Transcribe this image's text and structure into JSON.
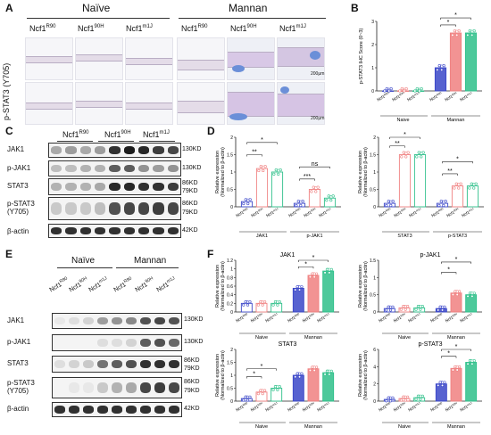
{
  "panels": {
    "A": "A",
    "B": "B",
    "C": "C",
    "D": "D",
    "E": "E",
    "F": "F"
  },
  "groups": {
    "naive": "Naïve",
    "mannan": "Mannan",
    "naive_small": "Naive"
  },
  "strains": {
    "r90_base": "Ncf1",
    "r90_sup": "R90",
    "g90h_base": "Ncf1",
    "g90h_sup": "90H",
    "m1j_base": "Ncf1",
    "m1j_sup": "m1J"
  },
  "panelA": {
    "row_label": "p-STAT3",
    "row_label2": "(Y705)",
    "scale": "200μm"
  },
  "proteins": {
    "jak1": "JAK1",
    "pjak1": "p-JAK1",
    "stat3": "STAT3",
    "pstat3": "p-STAT3",
    "pstat3_sub": "(Y705)",
    "bactin": "β-actin"
  },
  "kd": {
    "k130a": "130KD",
    "k130b": "130KD",
    "k86": "86KD",
    "k79": "79KD",
    "k86b": "86KD",
    "k79b": "79KD",
    "k42": "42KD"
  },
  "axis": {
    "ihc": "p-STAT3 IHC Score (0~3)",
    "rel1": "Relative expression",
    "rel2": "(Normalized to β-actin)"
  },
  "sig": {
    "star": "*",
    "dstar": "**",
    "tstar": "***",
    "ns": "ns"
  },
  "chart_data": [
    {
      "type": "bar",
      "panel": "B",
      "ylabel": "p-STAT3 IHC Score (0~3)",
      "ylim": [
        0,
        3
      ],
      "yticks": [
        0,
        1,
        2,
        3
      ],
      "categories": [
        "Ncf1R90",
        "Ncf190H",
        "Ncf1m1J",
        "Ncf1R90",
        "Ncf190H",
        "Ncf1m1J"
      ],
      "groups": [
        "Naive",
        "Mannan"
      ],
      "values": [
        0.0,
        0.0,
        0.0,
        1.0,
        2.5,
        2.5
      ],
      "colors": [
        "#3a46c8",
        "#f08080",
        "#2ec08a",
        "#3a46c8",
        "#f08080",
        "#2ec08a"
      ]
    },
    {
      "type": "bar",
      "panel": "D-left",
      "ylabel": "Relative expression (Normalized to β-actin)",
      "ylim": [
        0,
        2
      ],
      "yticks": [
        0.0,
        0.5,
        1.0,
        1.5,
        2.0
      ],
      "groups": [
        "JAK1",
        "p-JAK1"
      ],
      "categories": [
        "Ncf1R90",
        "Ncf190H",
        "Ncf1m1J",
        "Ncf1R90",
        "Ncf190H",
        "Ncf1m1J"
      ],
      "values": [
        0.15,
        1.1,
        1.0,
        0.1,
        0.5,
        0.25
      ]
    },
    {
      "type": "bar",
      "panel": "D-right",
      "ylabel": "Relative expression (Normalized to β-actin)",
      "ylim": [
        0,
        2
      ],
      "yticks": [
        0.0,
        0.5,
        1.0,
        1.5,
        2.0
      ],
      "groups": [
        "STAT3",
        "p-STAT3"
      ],
      "categories": [
        "Ncf1R90",
        "Ncf190H",
        "Ncf1m1J",
        "Ncf1R90",
        "Ncf190H",
        "Ncf1m1J"
      ],
      "values": [
        0.1,
        1.5,
        1.5,
        0.1,
        0.6,
        0.6
      ]
    },
    {
      "type": "bar",
      "panel": "F-JAK1",
      "title": "JAK1",
      "ylabel": "Relative expression (Normalized to β-actin)",
      "ylim": [
        0,
        1.2
      ],
      "yticks": [
        0.0,
        0.2,
        0.4,
        0.6,
        0.8,
        1.0,
        1.2
      ],
      "groups": [
        "Naive",
        "Mannan"
      ],
      "values": [
        0.2,
        0.2,
        0.2,
        0.55,
        0.85,
        0.95
      ]
    },
    {
      "type": "bar",
      "panel": "F-pJAK1",
      "title": "p-JAK1",
      "ylabel": "Relative expression (Normalized to β-actin)",
      "ylim": [
        0,
        1.5
      ],
      "yticks": [
        0.0,
        0.5,
        1.0,
        1.5
      ],
      "groups": [
        "Naive",
        "Mannan"
      ],
      "values": [
        0.1,
        0.12,
        0.12,
        0.1,
        0.55,
        0.5
      ]
    },
    {
      "type": "bar",
      "panel": "F-STAT3",
      "title": "STAT3",
      "ylabel": "Relative expression (Normalized to β-actin)",
      "ylim": [
        0,
        2.0
      ],
      "yticks": [
        0.0,
        0.5,
        1.0,
        1.5,
        2.0
      ],
      "groups": [
        "Naive",
        "Mannan"
      ],
      "values": [
        0.1,
        0.35,
        0.5,
        1.0,
        1.25,
        1.1
      ]
    },
    {
      "type": "bar",
      "panel": "F-pSTAT3",
      "title": "p-STAT3",
      "ylabel": "Relative expression (Normalized to β-actin)",
      "ylim": [
        0,
        6
      ],
      "yticks": [
        0,
        2,
        4,
        6
      ],
      "groups": [
        "Naive",
        "Mannan"
      ],
      "values": [
        0.2,
        0.3,
        0.4,
        2.0,
        3.8,
        4.5
      ]
    }
  ]
}
